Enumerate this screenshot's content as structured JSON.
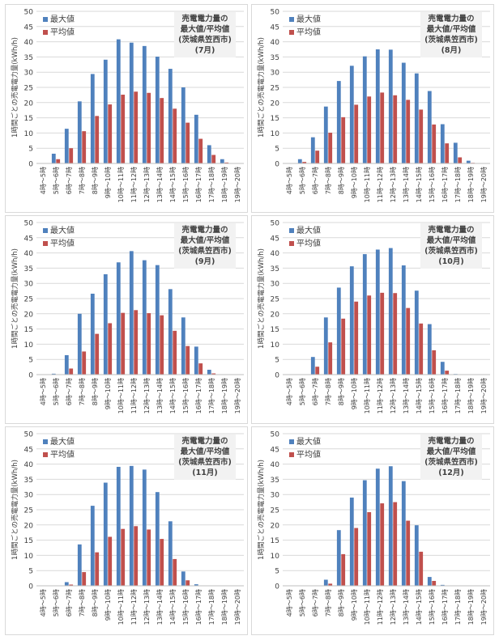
{
  "colors": {
    "max": "#4f81bd",
    "avg": "#c0504d",
    "grid": "#d9d9d9",
    "axis": "#000000",
    "annotation_bg": "#f2f2f2"
  },
  "chart_data": [
    {
      "type": "bar",
      "title_lines": [
        "売電電力量の",
        "最大値/平均値",
        "(茨城県笠西市)",
        "(7月)"
      ],
      "ylabel": "1時間ごとの売電電力量(kWh/h)",
      "ylim": [
        0,
        50
      ],
      "yticks": [
        0,
        5,
        10,
        15,
        20,
        25,
        30,
        35,
        40,
        45,
        50
      ],
      "grid": true,
      "legend_position": "top-left",
      "categories": [
        "4時～5時",
        "5時～6時",
        "6時～7時",
        "7時～8時",
        "8時～9時",
        "9時～10時",
        "10時～11時",
        "11時～12時",
        "12時～13時",
        "13時～14時",
        "14時～15時",
        "15時～16時",
        "16時～17時",
        "17時～18時",
        "18時～19時",
        "19時～20時"
      ],
      "series": [
        {
          "name": "最大値",
          "values": [
            0,
            3.2,
            11.4,
            20.4,
            29.4,
            34.1,
            40.8,
            39.7,
            38.6,
            35.1,
            31.1,
            25.0,
            16.0,
            6.0,
            1.4,
            0.1
          ]
        },
        {
          "name": "平均値",
          "values": [
            0,
            1.4,
            5.0,
            10.6,
            15.6,
            19.4,
            22.6,
            23.6,
            23.2,
            21.5,
            18.0,
            13.4,
            8.1,
            2.8,
            0.3,
            0
          ]
        }
      ]
    },
    {
      "type": "bar",
      "title_lines": [
        "売電電力量の",
        "最大値/平均値",
        "(茨城県笠西市)",
        "(8月)"
      ],
      "ylabel": "1時間ごとの売電電力量(kWh/h)",
      "ylim": [
        0,
        50
      ],
      "yticks": [
        0,
        5,
        10,
        15,
        20,
        25,
        30,
        35,
        40,
        45,
        50
      ],
      "grid": true,
      "legend_position": "top-left",
      "categories": [
        "4時～5時",
        "5時～6時",
        "6時～7時",
        "7時～8時",
        "8時～9時",
        "9時～10時",
        "10時～11時",
        "11時～12時",
        "12時～13時",
        "13時～14時",
        "14時～15時",
        "15時～16時",
        "16時～17時",
        "17時～18時",
        "18時～19時",
        "19時～20時"
      ],
      "series": [
        {
          "name": "最大値",
          "values": [
            0,
            1.4,
            8.6,
            18.7,
            27.1,
            32.1,
            35.2,
            37.5,
            37.4,
            33.1,
            29.6,
            23.8,
            12.9,
            6.8,
            0.9,
            0
          ]
        },
        {
          "name": "平均値",
          "values": [
            0,
            0.5,
            4.2,
            10.1,
            15.2,
            19.3,
            22.0,
            23.3,
            22.4,
            20.9,
            17.7,
            12.8,
            6.6,
            2.0,
            0.2,
            0
          ]
        }
      ]
    },
    {
      "type": "bar",
      "title_lines": [
        "売電電力量の",
        "最大値/平均値",
        "(茨城県笠西市)",
        "(9月)"
      ],
      "ylabel": "1時間ごとの売電電力量(kWh/h)",
      "ylim": [
        0,
        50
      ],
      "yticks": [
        0,
        5,
        10,
        15,
        20,
        25,
        30,
        35,
        40,
        45,
        50
      ],
      "grid": true,
      "legend_position": "top-left",
      "categories": [
        "4時～5時",
        "5時～6時",
        "6時～7時",
        "7時～8時",
        "8時～9時",
        "9時～10時",
        "10時～11時",
        "11時～12時",
        "12時～13時",
        "13時～14時",
        "14時～15時",
        "15時～16時",
        "16時～17時",
        "17時～18時",
        "18時～19時",
        "19時～20時"
      ],
      "series": [
        {
          "name": "最大値",
          "values": [
            0,
            0.3,
            6.4,
            20.0,
            26.6,
            33.0,
            36.9,
            40.6,
            37.6,
            36.0,
            28.1,
            18.8,
            9.2,
            1.6,
            0.1,
            0
          ]
        },
        {
          "name": "平均値",
          "values": [
            0,
            0.1,
            2.0,
            7.6,
            13.4,
            16.9,
            20.3,
            21.2,
            20.2,
            19.5,
            14.4,
            9.4,
            3.7,
            0.4,
            0,
            0
          ]
        }
      ]
    },
    {
      "type": "bar",
      "title_lines": [
        "売電電力量の",
        "最大値/平均値",
        "(茨城県笠西市)",
        "(10月)"
      ],
      "ylabel": "1時間ごとの売電電力量(kWh/h)",
      "ylim": [
        0,
        50
      ],
      "yticks": [
        0,
        5,
        10,
        15,
        20,
        25,
        30,
        35,
        40,
        45,
        50
      ],
      "grid": true,
      "legend_position": "top-left",
      "categories": [
        "4時～5時",
        "5時～6時",
        "6時～7時",
        "7時～8時",
        "8時～9時",
        "9時～10時",
        "10時～11時",
        "11時～12時",
        "12時～13時",
        "13時～14時",
        "14時～15時",
        "15時～16時",
        "16時～17時",
        "17時～18時",
        "18時～19時",
        "19時～20時"
      ],
      "series": [
        {
          "name": "最大値",
          "values": [
            0,
            0,
            5.8,
            18.8,
            28.6,
            35.6,
            39.6,
            41.1,
            41.6,
            35.9,
            27.6,
            16.6,
            4.2,
            0.2,
            0,
            0
          ]
        },
        {
          "name": "平均値",
          "values": [
            0,
            0,
            2.6,
            10.6,
            18.4,
            24.0,
            26.0,
            26.9,
            26.8,
            21.9,
            16.8,
            8.0,
            1.3,
            0,
            0,
            0
          ]
        }
      ]
    },
    {
      "type": "bar",
      "title_lines": [
        "売電電力量の",
        "最大値/平均値",
        "(茨城県笠西市)",
        "(11月)"
      ],
      "ylabel": "1時間ごとの売電電力量(kWh/h)",
      "ylim": [
        0,
        50
      ],
      "yticks": [
        0,
        5,
        10,
        15,
        20,
        25,
        30,
        35,
        40,
        45,
        50
      ],
      "grid": true,
      "legend_position": "top-left",
      "categories": [
        "4時～5時",
        "5時～6時",
        "6時～7時",
        "7時～8時",
        "8時～9時",
        "9時～10時",
        "10時～11時",
        "11時～12時",
        "12時～13時",
        "13時～14時",
        "14時～15時",
        "15時～16時",
        "16時～17時",
        "17時～18時",
        "18時～19時",
        "19時～20時"
      ],
      "series": [
        {
          "name": "最大値",
          "values": [
            0,
            0,
            1.2,
            13.6,
            26.3,
            33.9,
            39.1,
            39.4,
            38.2,
            30.8,
            21.2,
            4.7,
            0.5,
            0,
            0,
            0
          ]
        },
        {
          "name": "平均値",
          "values": [
            0,
            0,
            0.4,
            4.5,
            11.0,
            16.1,
            18.7,
            19.6,
            18.5,
            15.4,
            8.8,
            1.8,
            0.1,
            0,
            0,
            0
          ]
        }
      ]
    },
    {
      "type": "bar",
      "title_lines": [
        "売電電力量の",
        "最大値/平均値",
        "(茨城県笠西市)",
        "(12月)"
      ],
      "ylabel": "1時間ごとの売電電力量(kWh/h)",
      "ylim": [
        0,
        50
      ],
      "yticks": [
        0,
        5,
        10,
        15,
        20,
        25,
        30,
        35,
        40,
        45,
        50
      ],
      "grid": true,
      "legend_position": "top-left",
      "categories": [
        "4時～5時",
        "5時～6時",
        "6時～7時",
        "7時～8時",
        "8時～9時",
        "9時～10時",
        "10時～11時",
        "11時～12時",
        "12時～13時",
        "13時～14時",
        "14時～15時",
        "15時～16時",
        "16時～17時",
        "17時～18時",
        "18時～19時",
        "19時～20時"
      ],
      "series": [
        {
          "name": "最大値",
          "values": [
            0,
            0,
            0,
            2.0,
            18.3,
            29.0,
            34.7,
            38.5,
            39.3,
            34.4,
            19.9,
            2.9,
            0.3,
            0,
            0,
            0
          ]
        },
        {
          "name": "平均値",
          "values": [
            0,
            0,
            0,
            0.7,
            10.4,
            19.0,
            24.2,
            27.1,
            27.5,
            21.4,
            11.2,
            1.6,
            0.1,
            0,
            0,
            0
          ]
        }
      ]
    }
  ]
}
